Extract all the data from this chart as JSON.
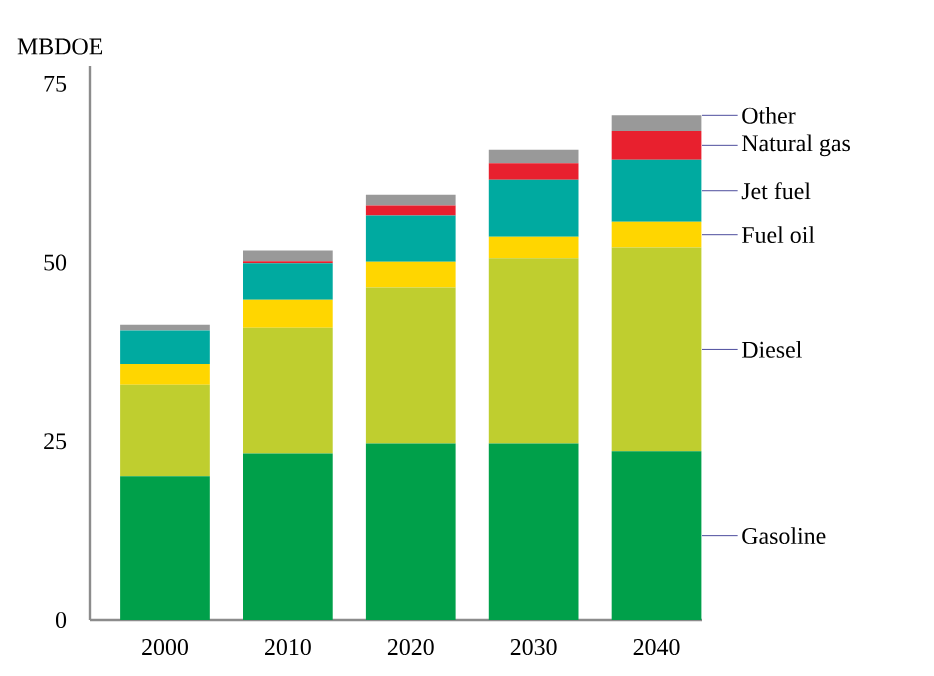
{
  "chart_data": {
    "type": "bar",
    "stacked": true,
    "ylabel": "MBDOE",
    "categories": [
      "2000",
      "2010",
      "2020",
      "2030",
      "2040"
    ],
    "ylim": [
      0,
      77.5
    ],
    "yticks": [
      0,
      25,
      50,
      75
    ],
    "grid": false,
    "legend": false,
    "series": [
      {
        "name": "Gasoline",
        "color": "#00a04a",
        "values": [
          20.1,
          23.3,
          24.7,
          24.7,
          23.6
        ]
      },
      {
        "name": "Diesel",
        "color": "#bfce2f",
        "values": [
          12.8,
          17.6,
          21.8,
          25.9,
          28.5
        ]
      },
      {
        "name": "Fuel oil",
        "color": "#ffd600",
        "values": [
          2.9,
          3.9,
          3.6,
          3.0,
          3.6
        ]
      },
      {
        "name": "Jet fuel",
        "color": "#00aaa0",
        "values": [
          4.7,
          5.1,
          6.5,
          8.0,
          8.7
        ]
      },
      {
        "name": "Natural gas",
        "color": "#e8202e",
        "values": [
          0,
          0.3,
          1.4,
          2.3,
          4.0
        ]
      },
      {
        "name": "Other",
        "color": "#999999",
        "values": [
          0.8,
          1.5,
          1.5,
          1.9,
          2.2
        ]
      }
    ]
  }
}
